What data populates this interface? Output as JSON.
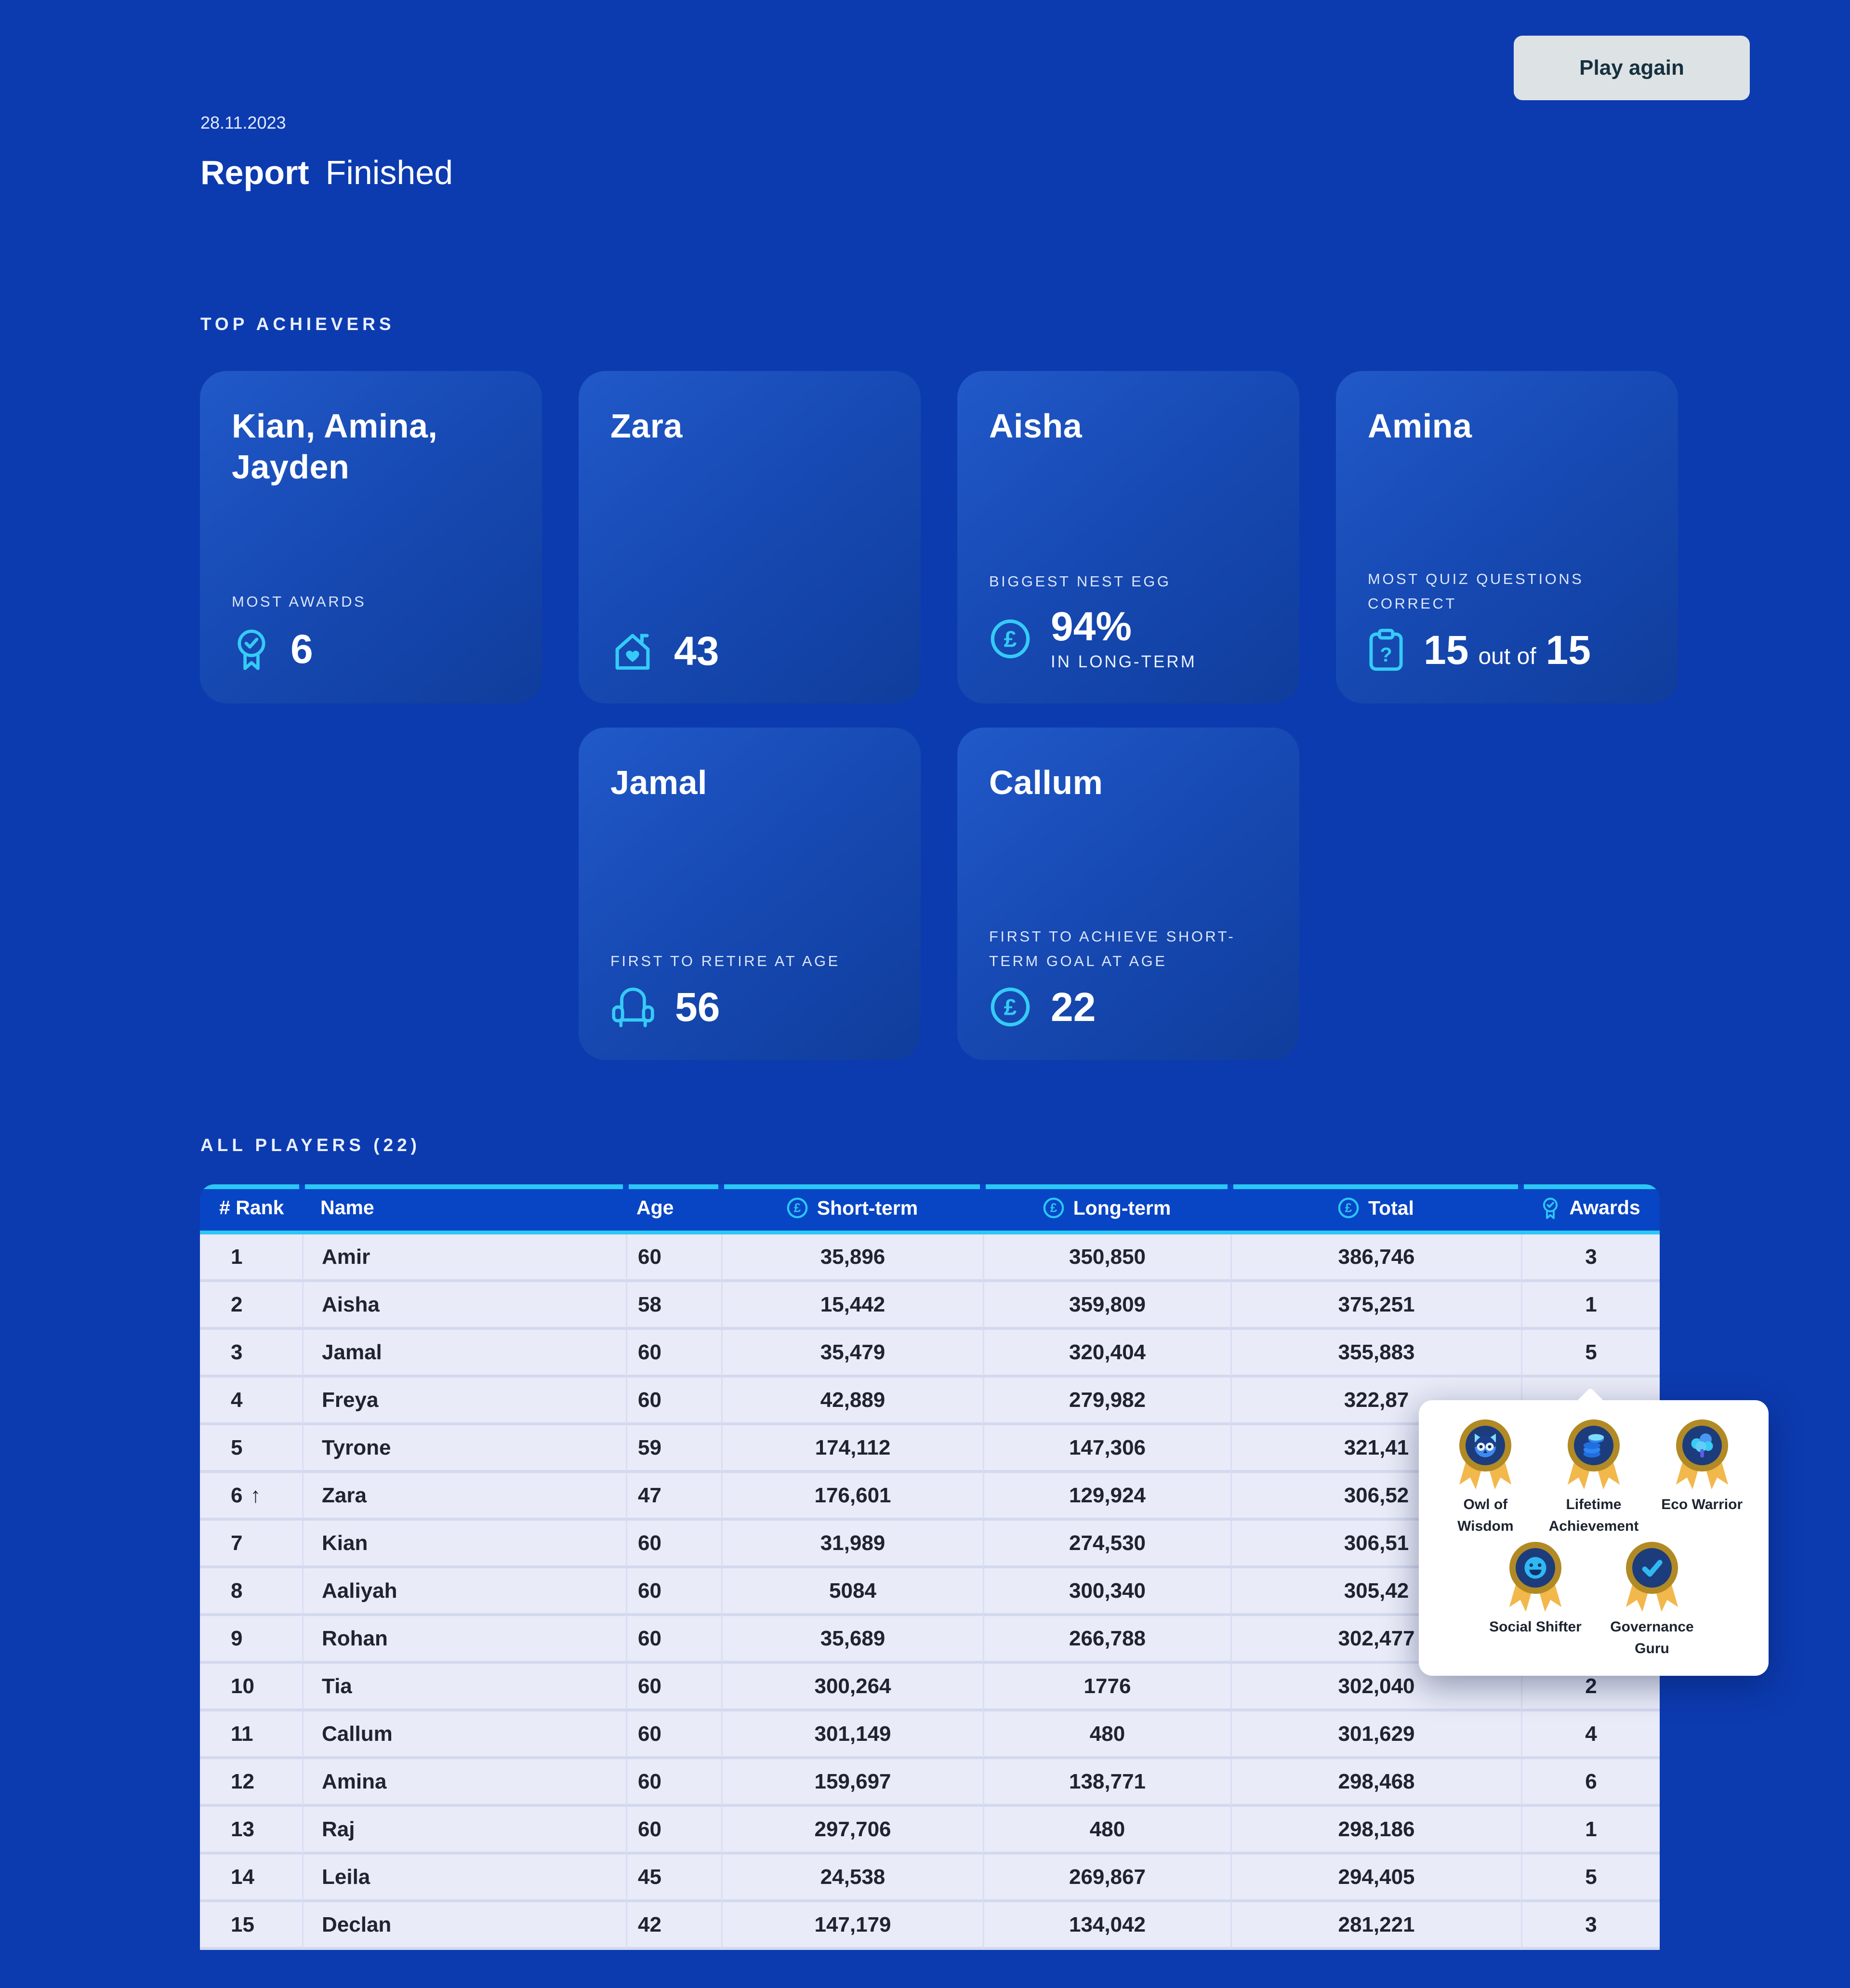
{
  "page": {
    "date": "28.11.2023",
    "title": "Report",
    "status": "Finished",
    "play_again_label": "Play again"
  },
  "colors": {
    "background": "#0C3BB0",
    "accent_cyan": "#2BC7F6",
    "table_header_blue": "#0845C5",
    "row_background": "#E9EBF8",
    "card_gradient_start": "#2159C9",
    "card_gradient_end": "#0F3D9C",
    "badge_gold": "#B18A25",
    "badge_ribbon": "#F2B84C"
  },
  "top_achievers": {
    "heading": "TOP ACHIEVERS",
    "cards": [
      {
        "names": "Kian, Amina, Jayden",
        "label": "MOST AWARDS",
        "icon": "rosette-check-icon",
        "value": "6",
        "grid": "r1c1"
      },
      {
        "names": "Zara",
        "label": "",
        "icon": "house-heart-icon",
        "value": "43",
        "grid": "r1c2"
      },
      {
        "names": "Aisha",
        "label": "BIGGEST NEST EGG",
        "icon": "pound-coin-icon",
        "value": "94%",
        "value_caption": "IN LONG-TERM",
        "grid": "r1c3"
      },
      {
        "names": "Amina",
        "label": "MOST QUIZ QUESTIONS CORRECT",
        "icon": "quiz-clipboard-icon",
        "value": "15",
        "value_mid": "out of",
        "value_end": "15",
        "grid": "r1c4"
      },
      {
        "names": "Jamal",
        "label": "FIRST TO RETIRE AT AGE",
        "icon": "armchair-icon",
        "value": "56",
        "grid": "r2c2"
      },
      {
        "names": "Callum",
        "label": "FIRST TO ACHIEVE SHORT-TERM GOAL AT AGE",
        "icon": "pound-coin-icon",
        "value": "22",
        "grid": "r2c3"
      }
    ]
  },
  "players": {
    "heading": "ALL PLAYERS (22)",
    "columns": {
      "rank": "# Rank",
      "name": "Name",
      "age": "Age",
      "short_term": "Short-term",
      "short_term_icon": "pound-coin-icon",
      "long_term": "Long-term",
      "long_term_icon": "pound-coin-icon",
      "total": "Total",
      "total_icon": "pound-coin-icon",
      "awards": "Awards",
      "awards_icon": "rosette-check-icon"
    },
    "rows": [
      {
        "rank": "1",
        "rank_suffix": "",
        "name": "Amir",
        "age": "60",
        "short": "35,896",
        "long": "350,850",
        "total": "386,746",
        "awards": "3"
      },
      {
        "rank": "2",
        "rank_suffix": "",
        "name": "Aisha",
        "age": "58",
        "short": "15,442",
        "long": "359,809",
        "total": "375,251",
        "awards": "1"
      },
      {
        "rank": "3",
        "rank_suffix": "",
        "name": "Jamal",
        "age": "60",
        "short": "35,479",
        "long": "320,404",
        "total": "355,883",
        "awards": "5"
      },
      {
        "rank": "4",
        "rank_suffix": "",
        "name": "Freya",
        "age": "60",
        "short": "42,889",
        "long": "279,982",
        "total": "322,87",
        "awards": ""
      },
      {
        "rank": "5",
        "rank_suffix": "",
        "name": "Tyrone",
        "age": "59",
        "short": "174,112",
        "long": "147,306",
        "total": "321,41",
        "awards": ""
      },
      {
        "rank": "6",
        "rank_suffix": "↑",
        "name": "Zara",
        "age": "47",
        "short": "176,601",
        "long": "129,924",
        "total": "306,52",
        "awards": ""
      },
      {
        "rank": "7",
        "rank_suffix": "",
        "name": "Kian",
        "age": "60",
        "short": "31,989",
        "long": "274,530",
        "total": "306,51",
        "awards": ""
      },
      {
        "rank": "8",
        "rank_suffix": "",
        "name": "Aaliyah",
        "age": "60",
        "short": "5084",
        "long": "300,340",
        "total": "305,42",
        "awards": ""
      },
      {
        "rank": "9",
        "rank_suffix": "",
        "name": "Rohan",
        "age": "60",
        "short": "35,689",
        "long": "266,788",
        "total": "302,477",
        "awards": "1"
      },
      {
        "rank": "10",
        "rank_suffix": "",
        "name": "Tia",
        "age": "60",
        "short": "300,264",
        "long": "1776",
        "total": "302,040",
        "awards": "2"
      },
      {
        "rank": "11",
        "rank_suffix": "",
        "name": "Callum",
        "age": "60",
        "short": "301,149",
        "long": "480",
        "total": "301,629",
        "awards": "4"
      },
      {
        "rank": "12",
        "rank_suffix": "",
        "name": "Amina",
        "age": "60",
        "short": "159,697",
        "long": "138,771",
        "total": "298,468",
        "awards": "6"
      },
      {
        "rank": "13",
        "rank_suffix": "",
        "name": "Raj",
        "age": "60",
        "short": "297,706",
        "long": "480",
        "total": "298,186",
        "awards": "1"
      },
      {
        "rank": "14",
        "rank_suffix": "",
        "name": "Leila",
        "age": "45",
        "short": "24,538",
        "long": "269,867",
        "total": "294,405",
        "awards": "5"
      },
      {
        "rank": "15",
        "rank_suffix": "",
        "name": "Declan",
        "age": "42",
        "short": "147,179",
        "long": "134,042",
        "total": "281,221",
        "awards": "3"
      }
    ]
  },
  "awards_tooltip": {
    "badges": [
      {
        "name": "Owl of Wisdom",
        "icon": "owl-badge-icon"
      },
      {
        "name": "Lifetime Achievement",
        "icon": "coins-badge-icon"
      },
      {
        "name": "Eco Warrior",
        "icon": "tree-badge-icon"
      },
      {
        "name": "Social Shifter",
        "icon": "smiley-badge-icon"
      },
      {
        "name": "Governance Guru",
        "icon": "check-badge-icon"
      }
    ]
  }
}
